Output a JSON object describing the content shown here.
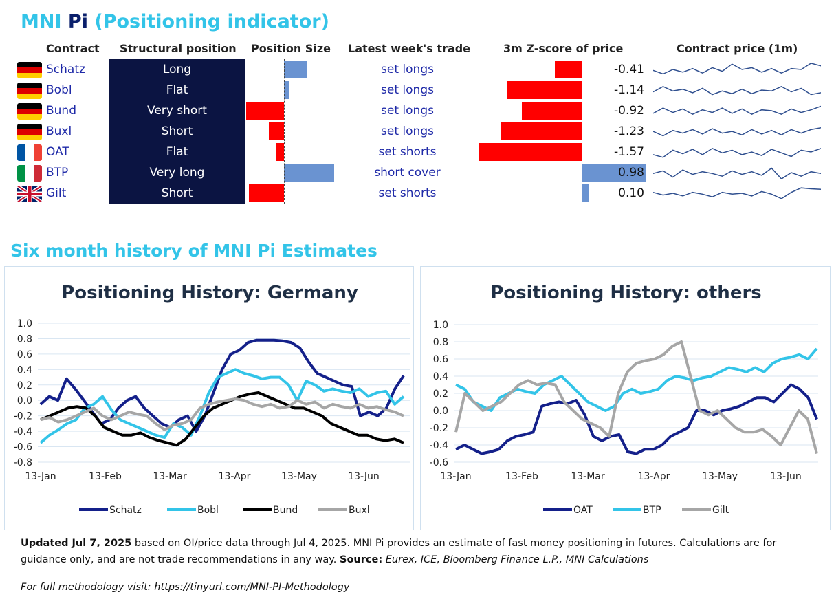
{
  "header": {
    "title_prefix": "MNI ",
    "title_pi": "Pi",
    "title_suffix": " (Positioning indicator)"
  },
  "table": {
    "columns": [
      "Contract",
      "Structural position",
      "Position Size",
      "Latest week's trade",
      "3m Z-score of price",
      "Contract price (1m)"
    ],
    "rows": [
      {
        "flag": "germany-flag",
        "contract": "Schatz",
        "structural": "Long",
        "size": 0.27,
        "trade": "set longs",
        "z": -0.41,
        "z_label": "-0.41",
        "spark": [
          0.45,
          0.25,
          0.5,
          0.35,
          0.55,
          0.3,
          0.6,
          0.4,
          0.8,
          0.5,
          0.6,
          0.35,
          0.55,
          0.3,
          0.55,
          0.5,
          0.85,
          0.7
        ]
      },
      {
        "flag": "germany-flag",
        "contract": "Bobl",
        "structural": "Flat",
        "size": 0.06,
        "trade": "set longs",
        "z": -1.14,
        "z_label": "-1.14",
        "spark": [
          0.4,
          0.7,
          0.45,
          0.55,
          0.35,
          0.6,
          0.25,
          0.45,
          0.3,
          0.55,
          0.3,
          0.5,
          0.45,
          0.7,
          0.4,
          0.6,
          0.25,
          0.35
        ]
      },
      {
        "flag": "germany-flag",
        "contract": "Bund",
        "structural": "Very short",
        "size": -0.44,
        "trade": "set longs",
        "z": -0.92,
        "z_label": "-0.92",
        "spark": [
          0.35,
          0.65,
          0.4,
          0.6,
          0.3,
          0.55,
          0.4,
          0.65,
          0.35,
          0.6,
          0.3,
          0.55,
          0.5,
          0.3,
          0.6,
          0.4,
          0.55,
          0.75
        ]
      },
      {
        "flag": "germany-flag",
        "contract": "Buxl",
        "structural": "Short",
        "size": -0.18,
        "trade": "set longs",
        "z": -1.23,
        "z_label": "-1.23",
        "spark": [
          0.5,
          0.25,
          0.55,
          0.4,
          0.6,
          0.35,
          0.65,
          0.4,
          0.5,
          0.3,
          0.6,
          0.35,
          0.55,
          0.3,
          0.6,
          0.4,
          0.6,
          0.7
        ]
      },
      {
        "flag": "france-flag",
        "contract": "OAT",
        "structural": "Flat",
        "size": -0.09,
        "trade": "set shorts",
        "z": -1.57,
        "z_label": "-1.57",
        "spark": [
          0.35,
          0.2,
          0.6,
          0.4,
          0.65,
          0.35,
          0.7,
          0.45,
          0.6,
          0.35,
          0.5,
          0.3,
          0.65,
          0.45,
          0.25,
          0.6,
          0.5,
          0.7
        ]
      },
      {
        "flag": "italy-flag",
        "contract": "BTP",
        "structural": "Very long",
        "size": 0.59,
        "trade": "short cover",
        "z": 0.98,
        "z_label": "0.98",
        "spark": [
          0.45,
          0.6,
          0.25,
          0.65,
          0.4,
          0.55,
          0.45,
          0.3,
          0.6,
          0.4,
          0.55,
          0.35,
          0.75,
          0.15,
          0.5,
          0.3,
          0.55,
          0.45
        ]
      },
      {
        "flag": "uk-flag",
        "contract": "Gilt",
        "structural": "Short",
        "size": -0.41,
        "trade": "set shorts",
        "z": 0.1,
        "z_label": "0.10",
        "spark": [
          0.55,
          0.4,
          0.5,
          0.35,
          0.55,
          0.45,
          0.3,
          0.55,
          0.45,
          0.5,
          0.35,
          0.6,
          0.45,
          0.2,
          0.55,
          0.8,
          0.75,
          0.72
        ]
      }
    ]
  },
  "section_title": "Six month history of MNI Pi Estimates",
  "chart_data": [
    {
      "type": "line",
      "title": "Positioning History: Germany",
      "ylim": [
        -0.8,
        1.0
      ],
      "yticks": [
        "1.0",
        "0.8",
        "0.6",
        "0.4",
        "0.2",
        "0.0",
        "-0.2",
        "-0.4",
        "-0.6",
        "-0.8"
      ],
      "xticks": [
        "13-Jan",
        "13-Feb",
        "13-Mar",
        "13-Apr",
        "13-May",
        "13-Jun"
      ],
      "series": [
        {
          "name": "Schatz",
          "color": "#14208a",
          "values": [
            -0.05,
            0.05,
            0.0,
            0.28,
            0.15,
            0.0,
            -0.15,
            -0.3,
            -0.25,
            -0.1,
            0.0,
            0.05,
            -0.1,
            -0.2,
            -0.3,
            -0.35,
            -0.25,
            -0.2,
            -0.4,
            -0.2,
            0.1,
            0.4,
            0.6,
            0.65,
            0.75,
            0.78,
            0.78,
            0.78,
            0.77,
            0.75,
            0.68,
            0.5,
            0.35,
            0.3,
            0.25,
            0.2,
            0.18,
            -0.2,
            -0.15,
            -0.2,
            -0.1,
            0.15,
            0.32
          ]
        },
        {
          "name": "Bobl",
          "color": "#33c4e8",
          "values": [
            -0.55,
            -0.45,
            -0.38,
            -0.3,
            -0.25,
            -0.1,
            -0.05,
            0.05,
            -0.12,
            -0.25,
            -0.3,
            -0.35,
            -0.4,
            -0.45,
            -0.48,
            -0.3,
            -0.35,
            -0.45,
            -0.2,
            0.1,
            0.3,
            0.35,
            0.4,
            0.35,
            0.32,
            0.28,
            0.3,
            0.3,
            0.2,
            0.0,
            0.25,
            0.2,
            0.12,
            0.15,
            0.12,
            0.1,
            0.15,
            0.05,
            0.1,
            0.12,
            -0.05,
            0.05
          ]
        },
        {
          "name": "Bund",
          "color": "#000000",
          "values": [
            -0.25,
            -0.2,
            -0.15,
            -0.1,
            -0.08,
            -0.1,
            -0.2,
            -0.35,
            -0.4,
            -0.45,
            -0.45,
            -0.42,
            -0.48,
            -0.52,
            -0.55,
            -0.58,
            -0.5,
            -0.35,
            -0.2,
            -0.1,
            -0.05,
            0.0,
            0.05,
            0.08,
            0.1,
            0.05,
            0.0,
            -0.05,
            -0.1,
            -0.1,
            -0.15,
            -0.2,
            -0.3,
            -0.35,
            -0.4,
            -0.45,
            -0.45,
            -0.5,
            -0.52,
            -0.5,
            -0.55
          ]
        },
        {
          "name": "Buxl",
          "color": "#a6a6a6",
          "values": [
            -0.25,
            -0.22,
            -0.28,
            -0.25,
            -0.2,
            -0.15,
            -0.1,
            -0.2,
            -0.25,
            -0.2,
            -0.15,
            -0.18,
            -0.2,
            -0.3,
            -0.38,
            -0.32,
            -0.3,
            -0.25,
            -0.1,
            -0.05,
            -0.02,
            0.0,
            0.02,
            0.0,
            -0.05,
            -0.08,
            -0.05,
            -0.1,
            -0.08,
            0.0,
            -0.05,
            -0.02,
            -0.1,
            -0.05,
            -0.08,
            -0.1,
            -0.05,
            -0.1,
            -0.08,
            -0.12,
            -0.15,
            -0.2
          ]
        }
      ]
    },
    {
      "type": "line",
      "title": "Positioning History: others",
      "ylim": [
        -0.6,
        1.0
      ],
      "yticks": [
        "1.0",
        "0.8",
        "0.6",
        "0.4",
        "0.2",
        "0.0",
        "-0.2",
        "-0.4",
        "-0.6"
      ],
      "xticks": [
        "13-Jan",
        "13-Feb",
        "13-Mar",
        "13-Apr",
        "13-May",
        "13-Jun"
      ],
      "series": [
        {
          "name": "OAT",
          "color": "#14208a",
          "values": [
            -0.45,
            -0.4,
            -0.45,
            -0.5,
            -0.48,
            -0.45,
            -0.35,
            -0.3,
            -0.28,
            -0.25,
            0.05,
            0.08,
            0.1,
            0.08,
            0.12,
            -0.05,
            -0.3,
            -0.35,
            -0.3,
            -0.28,
            -0.48,
            -0.5,
            -0.45,
            -0.45,
            -0.4,
            -0.3,
            -0.25,
            -0.2,
            0.0,
            0.0,
            -0.05,
            0.0,
            0.02,
            0.05,
            0.1,
            0.15,
            0.15,
            0.1,
            0.2,
            0.3,
            0.25,
            0.15,
            -0.1
          ]
        },
        {
          "name": "BTP",
          "color": "#33c4e8",
          "values": [
            0.3,
            0.25,
            0.1,
            0.05,
            0.0,
            0.15,
            0.2,
            0.25,
            0.22,
            0.2,
            0.3,
            0.35,
            0.4,
            0.3,
            0.2,
            0.1,
            0.05,
            0.0,
            0.05,
            0.2,
            0.25,
            0.2,
            0.22,
            0.25,
            0.35,
            0.4,
            0.38,
            0.35,
            0.38,
            0.4,
            0.45,
            0.5,
            0.48,
            0.45,
            0.5,
            0.45,
            0.55,
            0.6,
            0.62,
            0.65,
            0.6,
            0.72
          ]
        },
        {
          "name": "Gilt",
          "color": "#a6a6a6",
          "values": [
            -0.25,
            0.2,
            0.1,
            0.0,
            0.05,
            0.1,
            0.2,
            0.3,
            0.35,
            0.3,
            0.32,
            0.3,
            0.1,
            0.0,
            -0.1,
            -0.15,
            -0.2,
            -0.3,
            0.2,
            0.45,
            0.55,
            0.58,
            0.6,
            0.65,
            0.75,
            0.8,
            0.4,
            0.0,
            -0.05,
            0.0,
            -0.1,
            -0.2,
            -0.25,
            -0.25,
            -0.22,
            -0.3,
            -0.4,
            -0.2,
            0.0,
            -0.1,
            -0.5
          ]
        }
      ]
    }
  ],
  "footer": {
    "updated_bold": "Updated Jul 7, 2025",
    "text1": " based on OI/price data through Jul 4, 2025. MNI Pi provides an estimate of fast money positioning in futures.  Calculations are for guidance only, and are not trade recommendations in any way. ",
    "source_bold": "Source:",
    "source_italic": " Eurex, ICE, Bloomberg Finance L.P., MNI Calculations",
    "methodology": "For full methodology visit: https://tinyurl.com/MNI-PI-Methodology"
  },
  "colors": {
    "accent": "#33c4e8",
    "navy": "#0b1442",
    "pos_bar": "#6a93d1",
    "neg_bar": "#ff0000",
    "spark": "#2f4f8f"
  }
}
